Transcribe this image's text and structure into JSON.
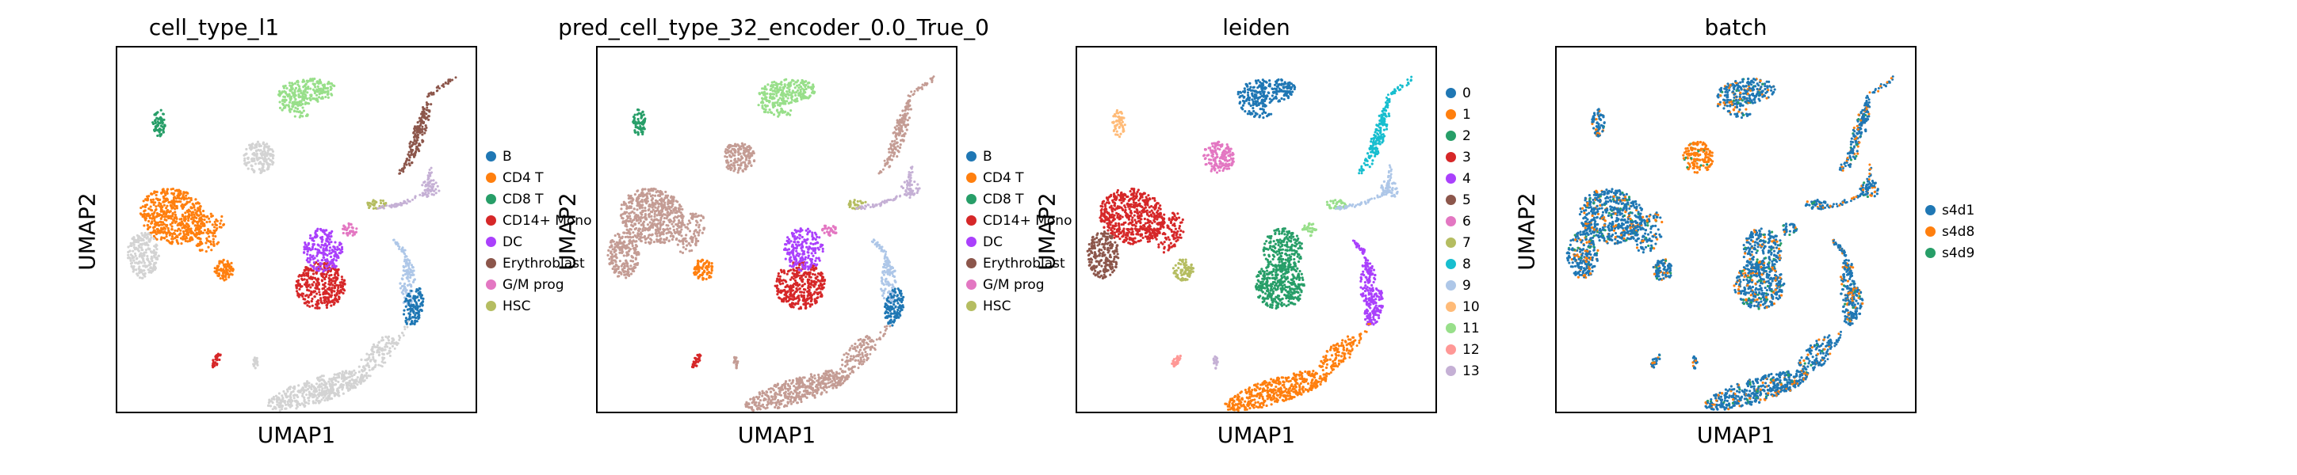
{
  "chart_data": [
    {
      "type": "scatter",
      "title": "cell_type_l1",
      "xlabel": "UMAP1",
      "ylabel": "UMAP2",
      "legend_position": "right",
      "grid": false,
      "legend": [
        {
          "label": "B",
          "color": "#1f77b4"
        },
        {
          "label": "CD4 T",
          "color": "#ff7f0e"
        },
        {
          "label": "CD8 T",
          "color": "#279e68"
        },
        {
          "label": "CD14+ Mono",
          "color": "#d62728"
        },
        {
          "label": "DC",
          "color": "#aa40fc"
        },
        {
          "label": "Erythroblast",
          "color": "#8c564b"
        },
        {
          "label": "G/M prog",
          "color": "#e377c2"
        },
        {
          "label": "HSC",
          "color": "#b5bd61"
        }
      ],
      "clusters": [
        {
          "id": "c1",
          "color": "#279e68"
        },
        {
          "id": "c2",
          "color": "#98df8a"
        },
        {
          "id": "c3",
          "color": "#d3d3d3"
        },
        {
          "id": "c4",
          "color": "#ff7f0e"
        },
        {
          "id": "c5",
          "color": "#d3d3d3"
        },
        {
          "id": "c6",
          "color": "#ff7f0e"
        },
        {
          "id": "c7",
          "color": "#d62728"
        },
        {
          "id": "c8",
          "color": "#aa40fc"
        },
        {
          "id": "c9",
          "color": "#e377c2"
        },
        {
          "id": "c10",
          "color": "#b5bd61"
        },
        {
          "id": "c11",
          "color": "#8c564b"
        },
        {
          "id": "c12",
          "color": "#c5b0d5"
        },
        {
          "id": "c13",
          "color": "#aec7e8"
        },
        {
          "id": "c14",
          "color": "#1f77b4"
        },
        {
          "id": "c15",
          "color": "#d3d3d3"
        },
        {
          "id": "c16",
          "color": "#d62728"
        },
        {
          "id": "c17",
          "color": "#d3d3d3"
        }
      ]
    },
    {
      "type": "scatter",
      "title": "pred_cell_type_32_encoder_0.0_True_0",
      "xlabel": "UMAP1",
      "ylabel": "UMAP2",
      "legend_position": "right",
      "grid": false,
      "legend": [
        {
          "label": "B",
          "color": "#1f77b4"
        },
        {
          "label": "CD4 T",
          "color": "#ff7f0e"
        },
        {
          "label": "CD8 T",
          "color": "#279e68"
        },
        {
          "label": "CD14+ Mono",
          "color": "#d62728"
        },
        {
          "label": "DC",
          "color": "#aa40fc"
        },
        {
          "label": "Erythroblast",
          "color": "#8c564b"
        },
        {
          "label": "G/M prog",
          "color": "#e377c2"
        },
        {
          "label": "HSC",
          "color": "#b5bd61"
        }
      ],
      "clusters": [
        {
          "id": "c1",
          "color": "#279e68"
        },
        {
          "id": "c2",
          "color": "#98df8a"
        },
        {
          "id": "c3",
          "color": "#c49c94"
        },
        {
          "id": "c4",
          "color": "#c49c94"
        },
        {
          "id": "c5",
          "color": "#c49c94"
        },
        {
          "id": "c6",
          "color": "#ff7f0e"
        },
        {
          "id": "c7",
          "color": "#d62728"
        },
        {
          "id": "c8",
          "color": "#aa40fc"
        },
        {
          "id": "c9",
          "color": "#e377c2"
        },
        {
          "id": "c10",
          "color": "#b5bd61"
        },
        {
          "id": "c11",
          "color": "#c49c94"
        },
        {
          "id": "c12",
          "color": "#c5b0d5"
        },
        {
          "id": "c13",
          "color": "#aec7e8"
        },
        {
          "id": "c14",
          "color": "#1f77b4"
        },
        {
          "id": "c15",
          "color": "#c49c94"
        },
        {
          "id": "c16",
          "color": "#d62728"
        },
        {
          "id": "c17",
          "color": "#c49c94"
        }
      ]
    },
    {
      "type": "scatter",
      "title": "leiden",
      "xlabel": "UMAP1",
      "ylabel": "UMAP2",
      "legend_position": "right",
      "grid": false,
      "legend": [
        {
          "label": "0",
          "color": "#1f77b4"
        },
        {
          "label": "1",
          "color": "#ff7f0e"
        },
        {
          "label": "2",
          "color": "#279e68"
        },
        {
          "label": "3",
          "color": "#d62728"
        },
        {
          "label": "4",
          "color": "#aa40fc"
        },
        {
          "label": "5",
          "color": "#8c564b"
        },
        {
          "label": "6",
          "color": "#e377c2"
        },
        {
          "label": "7",
          "color": "#b5bd61"
        },
        {
          "label": "8",
          "color": "#17becf"
        },
        {
          "label": "9",
          "color": "#aec7e8"
        },
        {
          "label": "10",
          "color": "#ffbb78"
        },
        {
          "label": "11",
          "color": "#98df8a"
        },
        {
          "label": "12",
          "color": "#ff9896"
        },
        {
          "label": "13",
          "color": "#c5b0d5"
        }
      ],
      "clusters": [
        {
          "id": "c1",
          "color": "#ffbb78"
        },
        {
          "id": "c2",
          "color": "#1f77b4"
        },
        {
          "id": "c3",
          "color": "#e377c2"
        },
        {
          "id": "c4",
          "color": "#d62728"
        },
        {
          "id": "c5",
          "color": "#8c564b"
        },
        {
          "id": "c6",
          "color": "#b5bd61"
        },
        {
          "id": "c7",
          "color": "#279e68"
        },
        {
          "id": "c8",
          "color": "#279e68"
        },
        {
          "id": "c9",
          "color": "#98df8a"
        },
        {
          "id": "c10",
          "color": "#98df8a"
        },
        {
          "id": "c11",
          "color": "#17becf"
        },
        {
          "id": "c12",
          "color": "#aec7e8"
        },
        {
          "id": "c13",
          "color": "#aa40fc"
        },
        {
          "id": "c14",
          "color": "#aa40fc"
        },
        {
          "id": "c15",
          "color": "#ff7f0e"
        },
        {
          "id": "c16",
          "color": "#ff9896"
        },
        {
          "id": "c17",
          "color": "#c5b0d5"
        }
      ]
    },
    {
      "type": "scatter",
      "title": "batch",
      "xlabel": "UMAP1",
      "ylabel": "UMAP2",
      "legend_position": "right",
      "grid": false,
      "legend": [
        {
          "label": "s4d1",
          "color": "#1f77b4"
        },
        {
          "label": "s4d8",
          "color": "#ff7f0e"
        },
        {
          "label": "s4d9",
          "color": "#279e68"
        }
      ],
      "clusters": [
        {
          "id": "c1",
          "color": "#1f77b4"
        },
        {
          "id": "c2",
          "color": "#1f77b4"
        },
        {
          "id": "c3",
          "color": "#ff7f0e"
        },
        {
          "id": "c4",
          "color": "#1f77b4"
        },
        {
          "id": "c5",
          "color": "#1f77b4"
        },
        {
          "id": "c6",
          "color": "#1f77b4"
        },
        {
          "id": "c7",
          "color": "#1f77b4"
        },
        {
          "id": "c8",
          "color": "#1f77b4"
        },
        {
          "id": "c9",
          "color": "#1f77b4"
        },
        {
          "id": "c10",
          "color": "#1f77b4"
        },
        {
          "id": "c11",
          "color": "#1f77b4"
        },
        {
          "id": "c12",
          "color": "#1f77b4"
        },
        {
          "id": "c13",
          "color": "#1f77b4"
        },
        {
          "id": "c14",
          "color": "#1f77b4"
        },
        {
          "id": "c15",
          "color": "#1f77b4"
        },
        {
          "id": "c16",
          "color": "#1f77b4"
        },
        {
          "id": "c17",
          "color": "#1f77b4"
        }
      ],
      "overlay_colors": [
        "#ff7f0e",
        "#279e68"
      ]
    }
  ]
}
